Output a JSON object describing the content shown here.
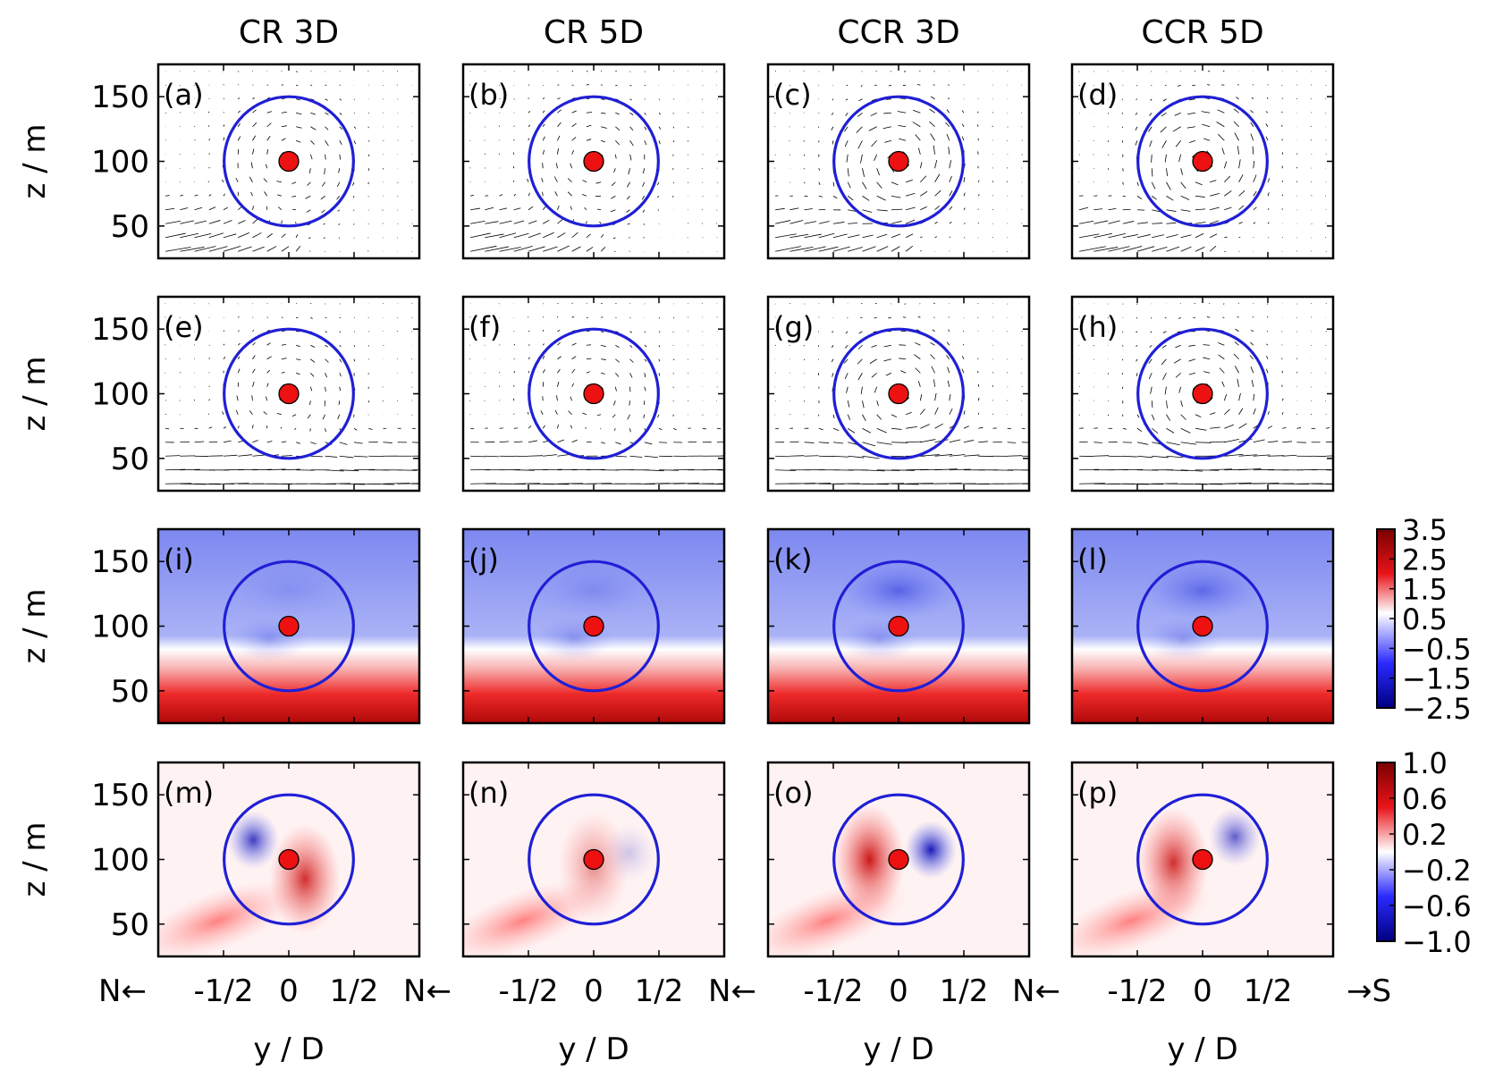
{
  "chart_data": {
    "type": "heatmap",
    "title": "",
    "columns": [
      "CR 3D",
      "CR 5D",
      "CCR 3D",
      "CCR 5D"
    ],
    "ylabel": "z / m",
    "xlabel": "y / D",
    "xlim": [
      -1,
      1
    ],
    "ylim": [
      25,
      175
    ],
    "yticks": [
      "50",
      "100",
      "150"
    ],
    "xticks": [
      "-1/2",
      "0",
      "1/2"
    ],
    "direction_labels": {
      "north": "N",
      "south": "S"
    },
    "rotor": {
      "center_y": 0,
      "center_z": 100,
      "radius_z": 50
    },
    "panel_labels": [
      [
        "(a)",
        "(b)",
        "(c)",
        "(d)"
      ],
      [
        "(e)",
        "(f)",
        "(g)",
        "(h)"
      ],
      [
        "(i)",
        "(j)",
        "(k)",
        "(l)"
      ],
      [
        "(m)",
        "(n)",
        "(o)",
        "(p)"
      ]
    ],
    "rows": [
      {
        "kind": "vector",
        "description": "in-plane velocity vectors"
      },
      {
        "kind": "vector",
        "description": "in-plane velocity vectors"
      },
      {
        "kind": "contour",
        "colorbar": {
          "min": -2.5,
          "max": 3.5,
          "ticks": [
            "3.5",
            "2.5",
            "1.5",
            "0.5",
            "−0.5",
            "−1.5",
            "−2.5"
          ]
        }
      },
      {
        "kind": "contour",
        "colorbar": {
          "min": -1.0,
          "max": 1.0,
          "ticks": [
            "1.0",
            "0.6",
            "0.2",
            "−0.2",
            "−0.6",
            "−1.0"
          ]
        }
      }
    ]
  },
  "colors": {
    "rotor_circle": "#1f1fd6",
    "hub": "#ee1111",
    "strong_red": "#b00000",
    "strong_blue": "#0000a0"
  }
}
